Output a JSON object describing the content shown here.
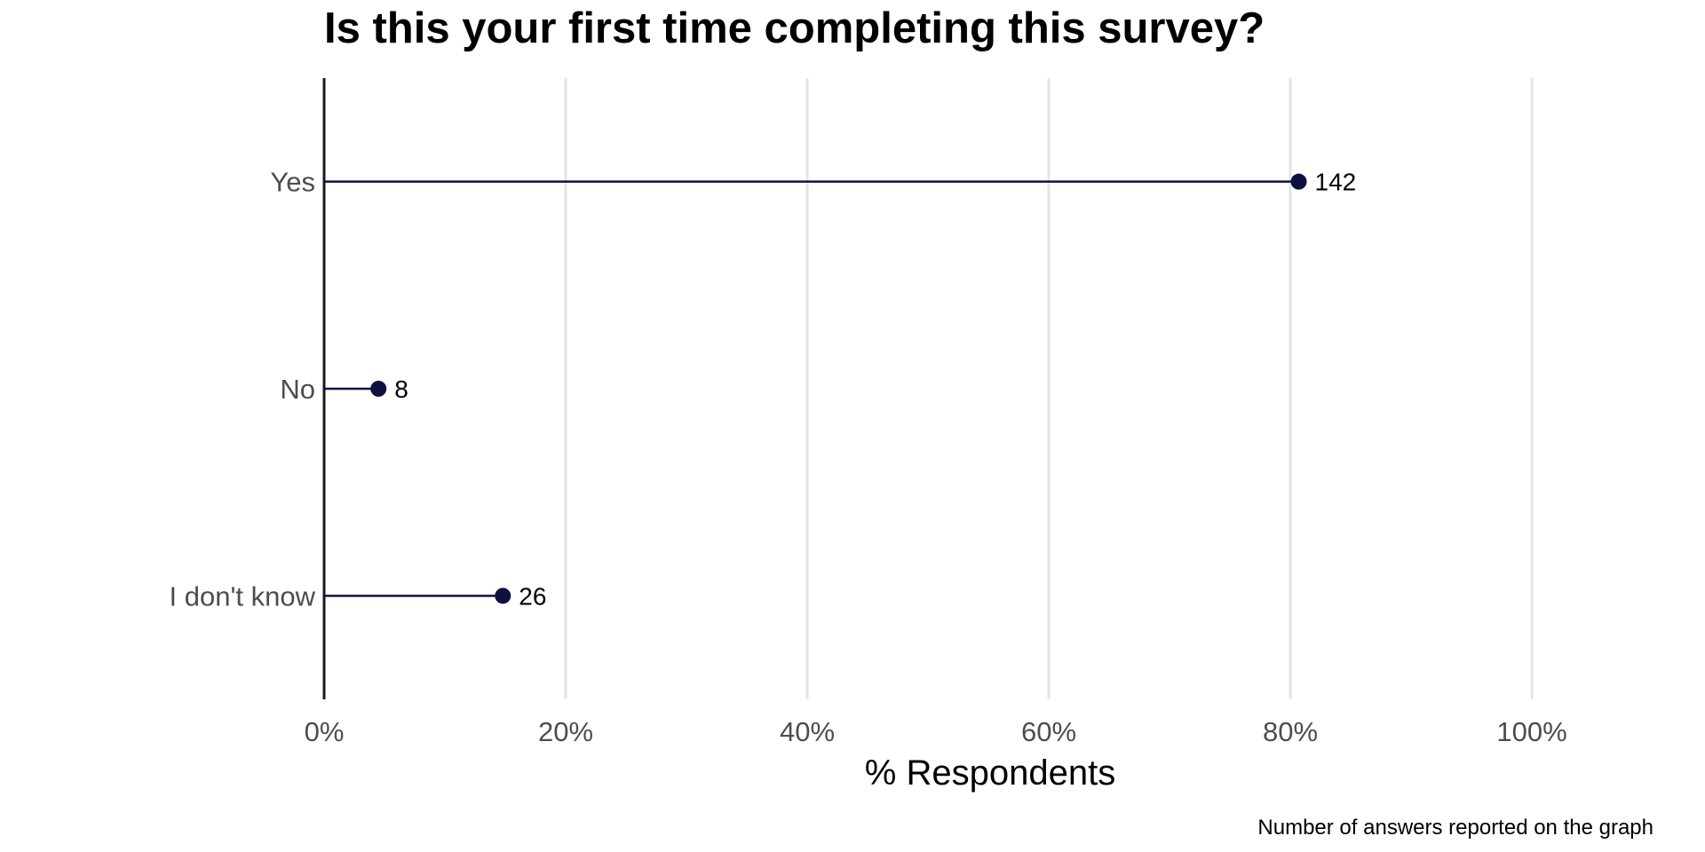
{
  "chart_data": {
    "type": "lollipop",
    "title": "Is this your first time completing this survey?",
    "xlabel": "% Respondents",
    "ylabel": "",
    "caption": "Number of answers reported on the graph",
    "xlim": [
      0,
      100
    ],
    "x_ticks": [
      0,
      20,
      40,
      60,
      80,
      100
    ],
    "x_tick_labels": [
      "0%",
      "20%",
      "40%",
      "60%",
      "80%",
      "100%"
    ],
    "categories": [
      "Yes",
      "No",
      "I don't know"
    ],
    "values": [
      80.7,
      4.5,
      14.8
    ],
    "counts": [
      "142",
      "8",
      "26"
    ],
    "grid": true,
    "colors": {
      "mark": "#0d1140",
      "grid": "#e5e5e5",
      "axis": "#1a1a1a"
    }
  }
}
